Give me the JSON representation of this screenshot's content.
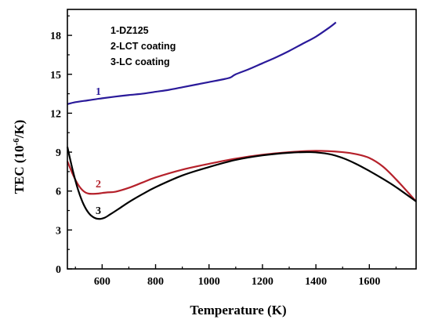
{
  "chart_data": {
    "type": "line",
    "xlabel": "Temperature (K)",
    "ylabel_main": "TEC (10",
    "ylabel_sup": "-6",
    "ylabel_tail": "/K)",
    "xlim": [
      470,
      1775
    ],
    "ylim": [
      0,
      20
    ],
    "x_ticks": [
      600,
      800,
      1000,
      1200,
      1400,
      1600
    ],
    "y_ticks": [
      0,
      3,
      6,
      9,
      12,
      15,
      18
    ],
    "x_tick_labels": [
      "600",
      "800",
      "1000",
      "1200",
      "1400",
      "1600"
    ],
    "y_tick_labels": [
      "0",
      "3",
      "6",
      "9",
      "12",
      "15",
      "18"
    ],
    "legend": [
      "1-DZ125",
      "2-LCT coating",
      "3-LC  coating"
    ],
    "series": [
      {
        "label": "1",
        "color": "#2a1a9a",
        "x": [
          470,
          500,
          550,
          600,
          650,
          700,
          750,
          800,
          850,
          900,
          950,
          1000,
          1050,
          1080,
          1100,
          1150,
          1200,
          1250,
          1300,
          1350,
          1400,
          1450,
          1475
        ],
        "y": [
          12.7,
          12.85,
          13.0,
          13.15,
          13.28,
          13.4,
          13.5,
          13.65,
          13.8,
          14.0,
          14.2,
          14.4,
          14.6,
          14.75,
          15.0,
          15.4,
          15.85,
          16.3,
          16.8,
          17.35,
          17.9,
          18.6,
          19.0
        ]
      },
      {
        "label": "2",
        "color": "#b5212b",
        "x": [
          470,
          490,
          510,
          530,
          550,
          580,
          600,
          620,
          650,
          700,
          750,
          800,
          900,
          1000,
          1100,
          1200,
          1300,
          1400,
          1500,
          1550,
          1600,
          1650,
          1700,
          1775
        ],
        "y": [
          8.3,
          7.3,
          6.5,
          6.0,
          5.8,
          5.8,
          5.85,
          5.9,
          5.95,
          6.25,
          6.65,
          7.05,
          7.65,
          8.1,
          8.5,
          8.8,
          9.0,
          9.1,
          9.0,
          8.85,
          8.55,
          7.9,
          6.9,
          5.2
        ]
      },
      {
        "label": "3",
        "color": "#000000",
        "x": [
          470,
          490,
          510,
          530,
          550,
          570,
          590,
          610,
          630,
          660,
          700,
          750,
          800,
          900,
          1000,
          1100,
          1200,
          1300,
          1380,
          1450,
          1500,
          1550,
          1600,
          1650,
          1700,
          1775
        ],
        "y": [
          9.4,
          7.6,
          6.1,
          5.0,
          4.3,
          3.95,
          3.85,
          3.95,
          4.2,
          4.6,
          5.15,
          5.75,
          6.3,
          7.2,
          7.85,
          8.4,
          8.75,
          8.95,
          9.0,
          8.85,
          8.55,
          8.1,
          7.55,
          6.95,
          6.3,
          5.2
        ]
      }
    ]
  }
}
